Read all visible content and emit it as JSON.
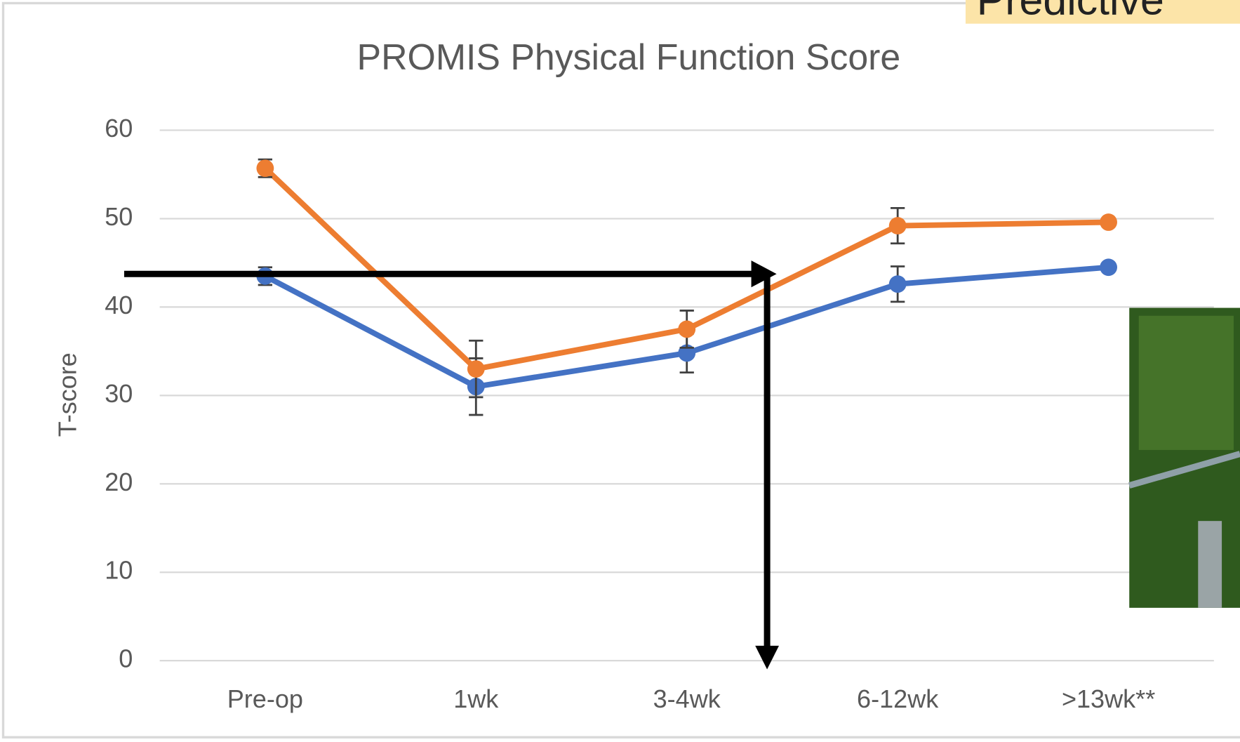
{
  "slide_title": "Predictive",
  "chart_data": {
    "type": "line",
    "title": "PROMIS Physical Function Score",
    "y_label": "T-score",
    "categories": [
      "Pre-op",
      "1wk",
      "3-4wk",
      "6-12wk",
      ">13wk**"
    ],
    "series": [
      {
        "color": "#4472c4",
        "values": [
          43.5,
          31,
          34.8,
          42.6,
          44.5
        ],
        "errors": [
          1,
          3.2,
          2.2,
          2,
          null
        ]
      },
      {
        "color": "#ed7d31",
        "values": [
          55.7,
          33,
          37.5,
          49.2,
          49.6
        ],
        "errors": [
          1,
          3.2,
          2.1,
          2,
          null
        ]
      }
    ],
    "ylim": [
      0,
      60
    ],
    "yticks": [
      0,
      10,
      20,
      30,
      40,
      50,
      60
    ],
    "grid": true
  }
}
